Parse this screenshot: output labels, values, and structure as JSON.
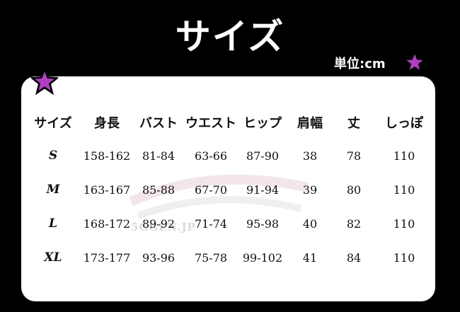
{
  "header": {
    "title": "サイズ",
    "unit": "単位:cm"
  },
  "table": {
    "columns": [
      "サイズ",
      "身長",
      "バスト",
      "ウエスト",
      "ヒップ",
      "肩幅",
      "丈",
      "しっぽ"
    ],
    "rows": [
      [
        "S",
        "158-162",
        "81-84",
        "63-66",
        "87-90",
        38,
        78,
        110
      ],
      [
        "M",
        "163-167",
        "85-88",
        "67-70",
        "91-94",
        39,
        80,
        110
      ],
      [
        "L",
        "168-172",
        "89-92",
        "71-74",
        "95-98",
        40,
        82,
        110
      ],
      [
        "XL",
        "173-177",
        "93-96",
        "75-78",
        "99-102",
        41,
        84,
        110
      ]
    ]
  },
  "watermark": "5GGEN.JP"
}
